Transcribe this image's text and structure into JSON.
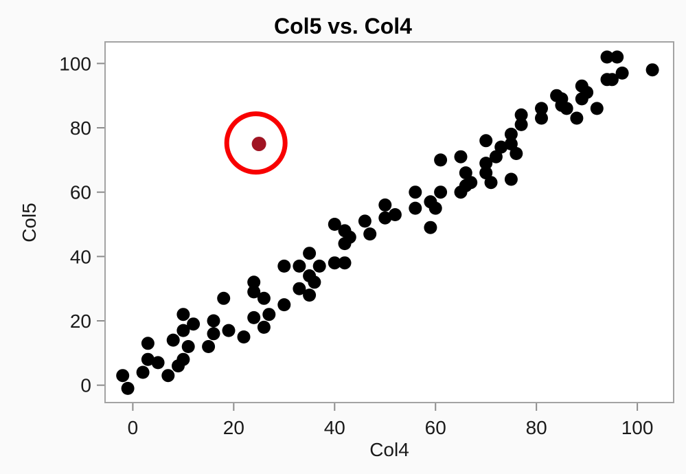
{
  "window": {
    "title": "Col5 vs. Col4"
  },
  "colors": {
    "background": "#FAFAFA",
    "plot_background": "#FFFFFF",
    "frame": "#A3A3A3",
    "tick": "#8C8C8C",
    "text": "#1A1A1A",
    "title_text": "#000000"
  },
  "chart_data": {
    "type": "scatter",
    "title": "Col5 vs. Col4",
    "xlabel": "Col4",
    "ylabel": "Col5",
    "xlim": [
      -5.5,
      107.2
    ],
    "ylim": [
      -5.4,
      106.7
    ],
    "xticks": [
      0,
      20,
      40,
      60,
      80,
      100
    ],
    "yticks": [
      0,
      20,
      40,
      60,
      80,
      100
    ],
    "grid": false,
    "legend": "none",
    "marker": {
      "shape": "circle",
      "color": "#000000",
      "radius_px": 9.5
    },
    "points": [
      [
        -2,
        3
      ],
      [
        -1,
        -1
      ],
      [
        2,
        4
      ],
      [
        3,
        8
      ],
      [
        5,
        7
      ],
      [
        3,
        13
      ],
      [
        7,
        3
      ],
      [
        8,
        14
      ],
      [
        9,
        6
      ],
      [
        10,
        8
      ],
      [
        10,
        22
      ],
      [
        10,
        17
      ],
      [
        12,
        19
      ],
      [
        11,
        12
      ],
      [
        15,
        12
      ],
      [
        16,
        20
      ],
      [
        16,
        16
      ],
      [
        18,
        27
      ],
      [
        19,
        17
      ],
      [
        22,
        15
      ],
      [
        24,
        29
      ],
      [
        24,
        32
      ],
      [
        26,
        27
      ],
      [
        24,
        21
      ],
      [
        27,
        22
      ],
      [
        26,
        18
      ],
      [
        30,
        37
      ],
      [
        30,
        25
      ],
      [
        35,
        41
      ],
      [
        33,
        37
      ],
      [
        37,
        37
      ],
      [
        35,
        34
      ],
      [
        36,
        32
      ],
      [
        33,
        30
      ],
      [
        35,
        28
      ],
      [
        40,
        38
      ],
      [
        42,
        38
      ],
      [
        40,
        50
      ],
      [
        42,
        48
      ],
      [
        43,
        46
      ],
      [
        42,
        44
      ],
      [
        46,
        51
      ],
      [
        47,
        47
      ],
      [
        50,
        56
      ],
      [
        52,
        53
      ],
      [
        50,
        52
      ],
      [
        56,
        55
      ],
      [
        56,
        60
      ],
      [
        59,
        57
      ],
      [
        60,
        55
      ],
      [
        59,
        49
      ],
      [
        61,
        60
      ],
      [
        61,
        70
      ],
      [
        65,
        71
      ],
      [
        66,
        66
      ],
      [
        66,
        62
      ],
      [
        65,
        60
      ],
      [
        67,
        63
      ],
      [
        70,
        76
      ],
      [
        75,
        78
      ],
      [
        77,
        84
      ],
      [
        77,
        81
      ],
      [
        75,
        75
      ],
      [
        73,
        74
      ],
      [
        76,
        72
      ],
      [
        72,
        71
      ],
      [
        70,
        69
      ],
      [
        70,
        66
      ],
      [
        71,
        63
      ],
      [
        75,
        64
      ],
      [
        81,
        86
      ],
      [
        81,
        83
      ],
      [
        84,
        90
      ],
      [
        85,
        89
      ],
      [
        85,
        87
      ],
      [
        86,
        86
      ],
      [
        92,
        86
      ],
      [
        88,
        83
      ],
      [
        89,
        93
      ],
      [
        90,
        91
      ],
      [
        89,
        89
      ],
      [
        94,
        95
      ],
      [
        95,
        95
      ],
      [
        97,
        97
      ],
      [
        94,
        102
      ],
      [
        96,
        102
      ],
      [
        103,
        98
      ]
    ],
    "highlighted_point": {
      "x": 25,
      "y": 75,
      "color": "#A01423",
      "radius_px": 10.5
    },
    "annotation_circle": {
      "x": 24.4,
      "y": 75.3,
      "radius_px": 42.5,
      "color": "#F80000",
      "stroke_width_px": 7
    }
  }
}
